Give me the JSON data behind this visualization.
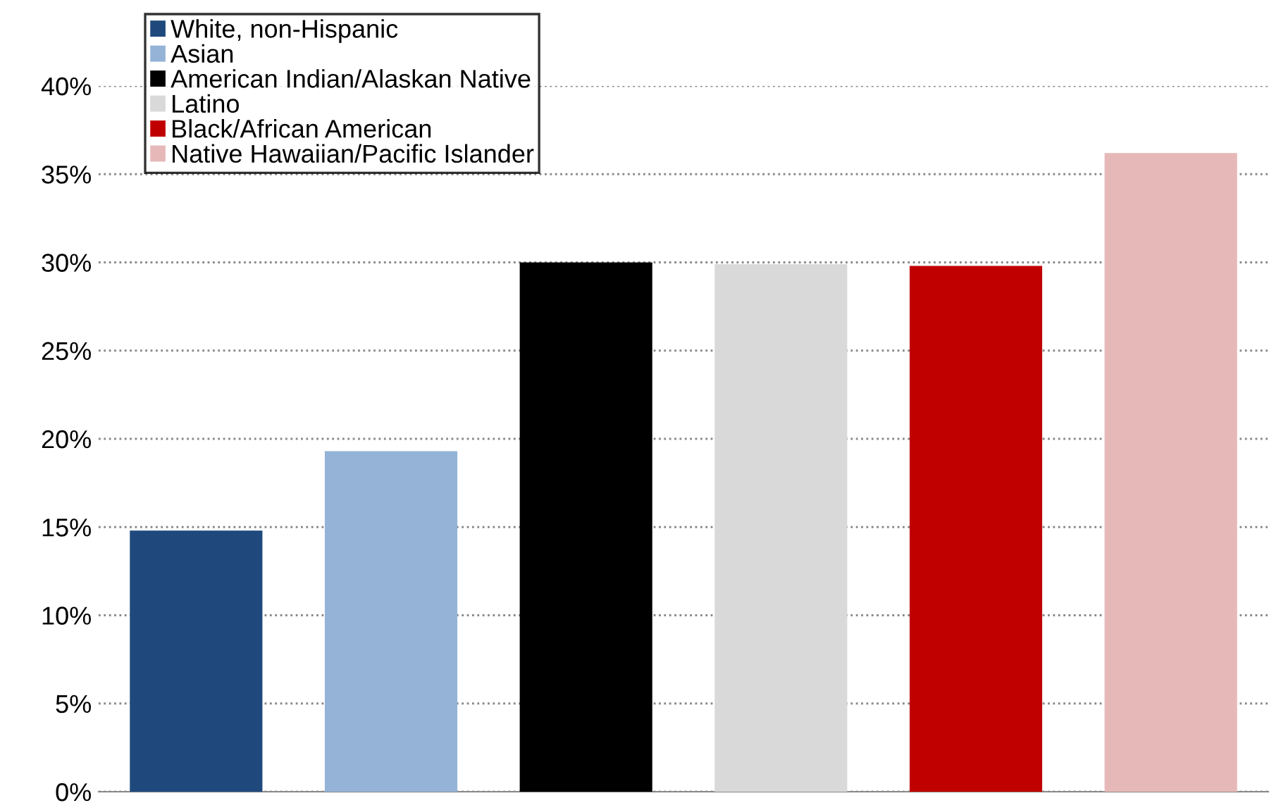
{
  "chart_data": {
    "type": "bar",
    "categories": [
      null,
      null,
      null,
      null,
      null,
      null
    ],
    "series": [
      {
        "name": "White, non-Hispanic",
        "color": "#1f497d",
        "values": [
          14.8,
          null,
          null,
          null,
          null,
          null
        ]
      },
      {
        "name": "Asian",
        "color": "#95b3d7",
        "values": [
          null,
          19.3,
          null,
          null,
          null,
          null
        ]
      },
      {
        "name": "American Indian/Alaskan Native",
        "color": "#000000",
        "values": [
          null,
          null,
          30.0,
          null,
          null,
          null
        ]
      },
      {
        "name": "Latino",
        "color": "#d9d9d9",
        "values": [
          null,
          null,
          null,
          29.9,
          null,
          null
        ]
      },
      {
        "name": "Black/African American",
        "color": "#c00000",
        "values": [
          null,
          null,
          null,
          null,
          29.8,
          null
        ]
      },
      {
        "name": "Native Hawaiian/Pacific Islander",
        "color": "#e6b9b8",
        "values": [
          null,
          null,
          null,
          null,
          null,
          36.2
        ]
      }
    ],
    "ylim": [
      0,
      40
    ],
    "yticks": [
      {
        "value": 0,
        "label": "0%"
      },
      {
        "value": 5,
        "label": "5%"
      },
      {
        "value": 10,
        "label": "10%"
      },
      {
        "value": 15,
        "label": "15%"
      },
      {
        "value": 20,
        "label": "20%"
      },
      {
        "value": 25,
        "label": "25%"
      },
      {
        "value": 30,
        "label": "30%"
      },
      {
        "value": 35,
        "label": "35%"
      },
      {
        "value": 40,
        "label": "40%"
      }
    ],
    "grid": "y",
    "legend": "top left"
  }
}
